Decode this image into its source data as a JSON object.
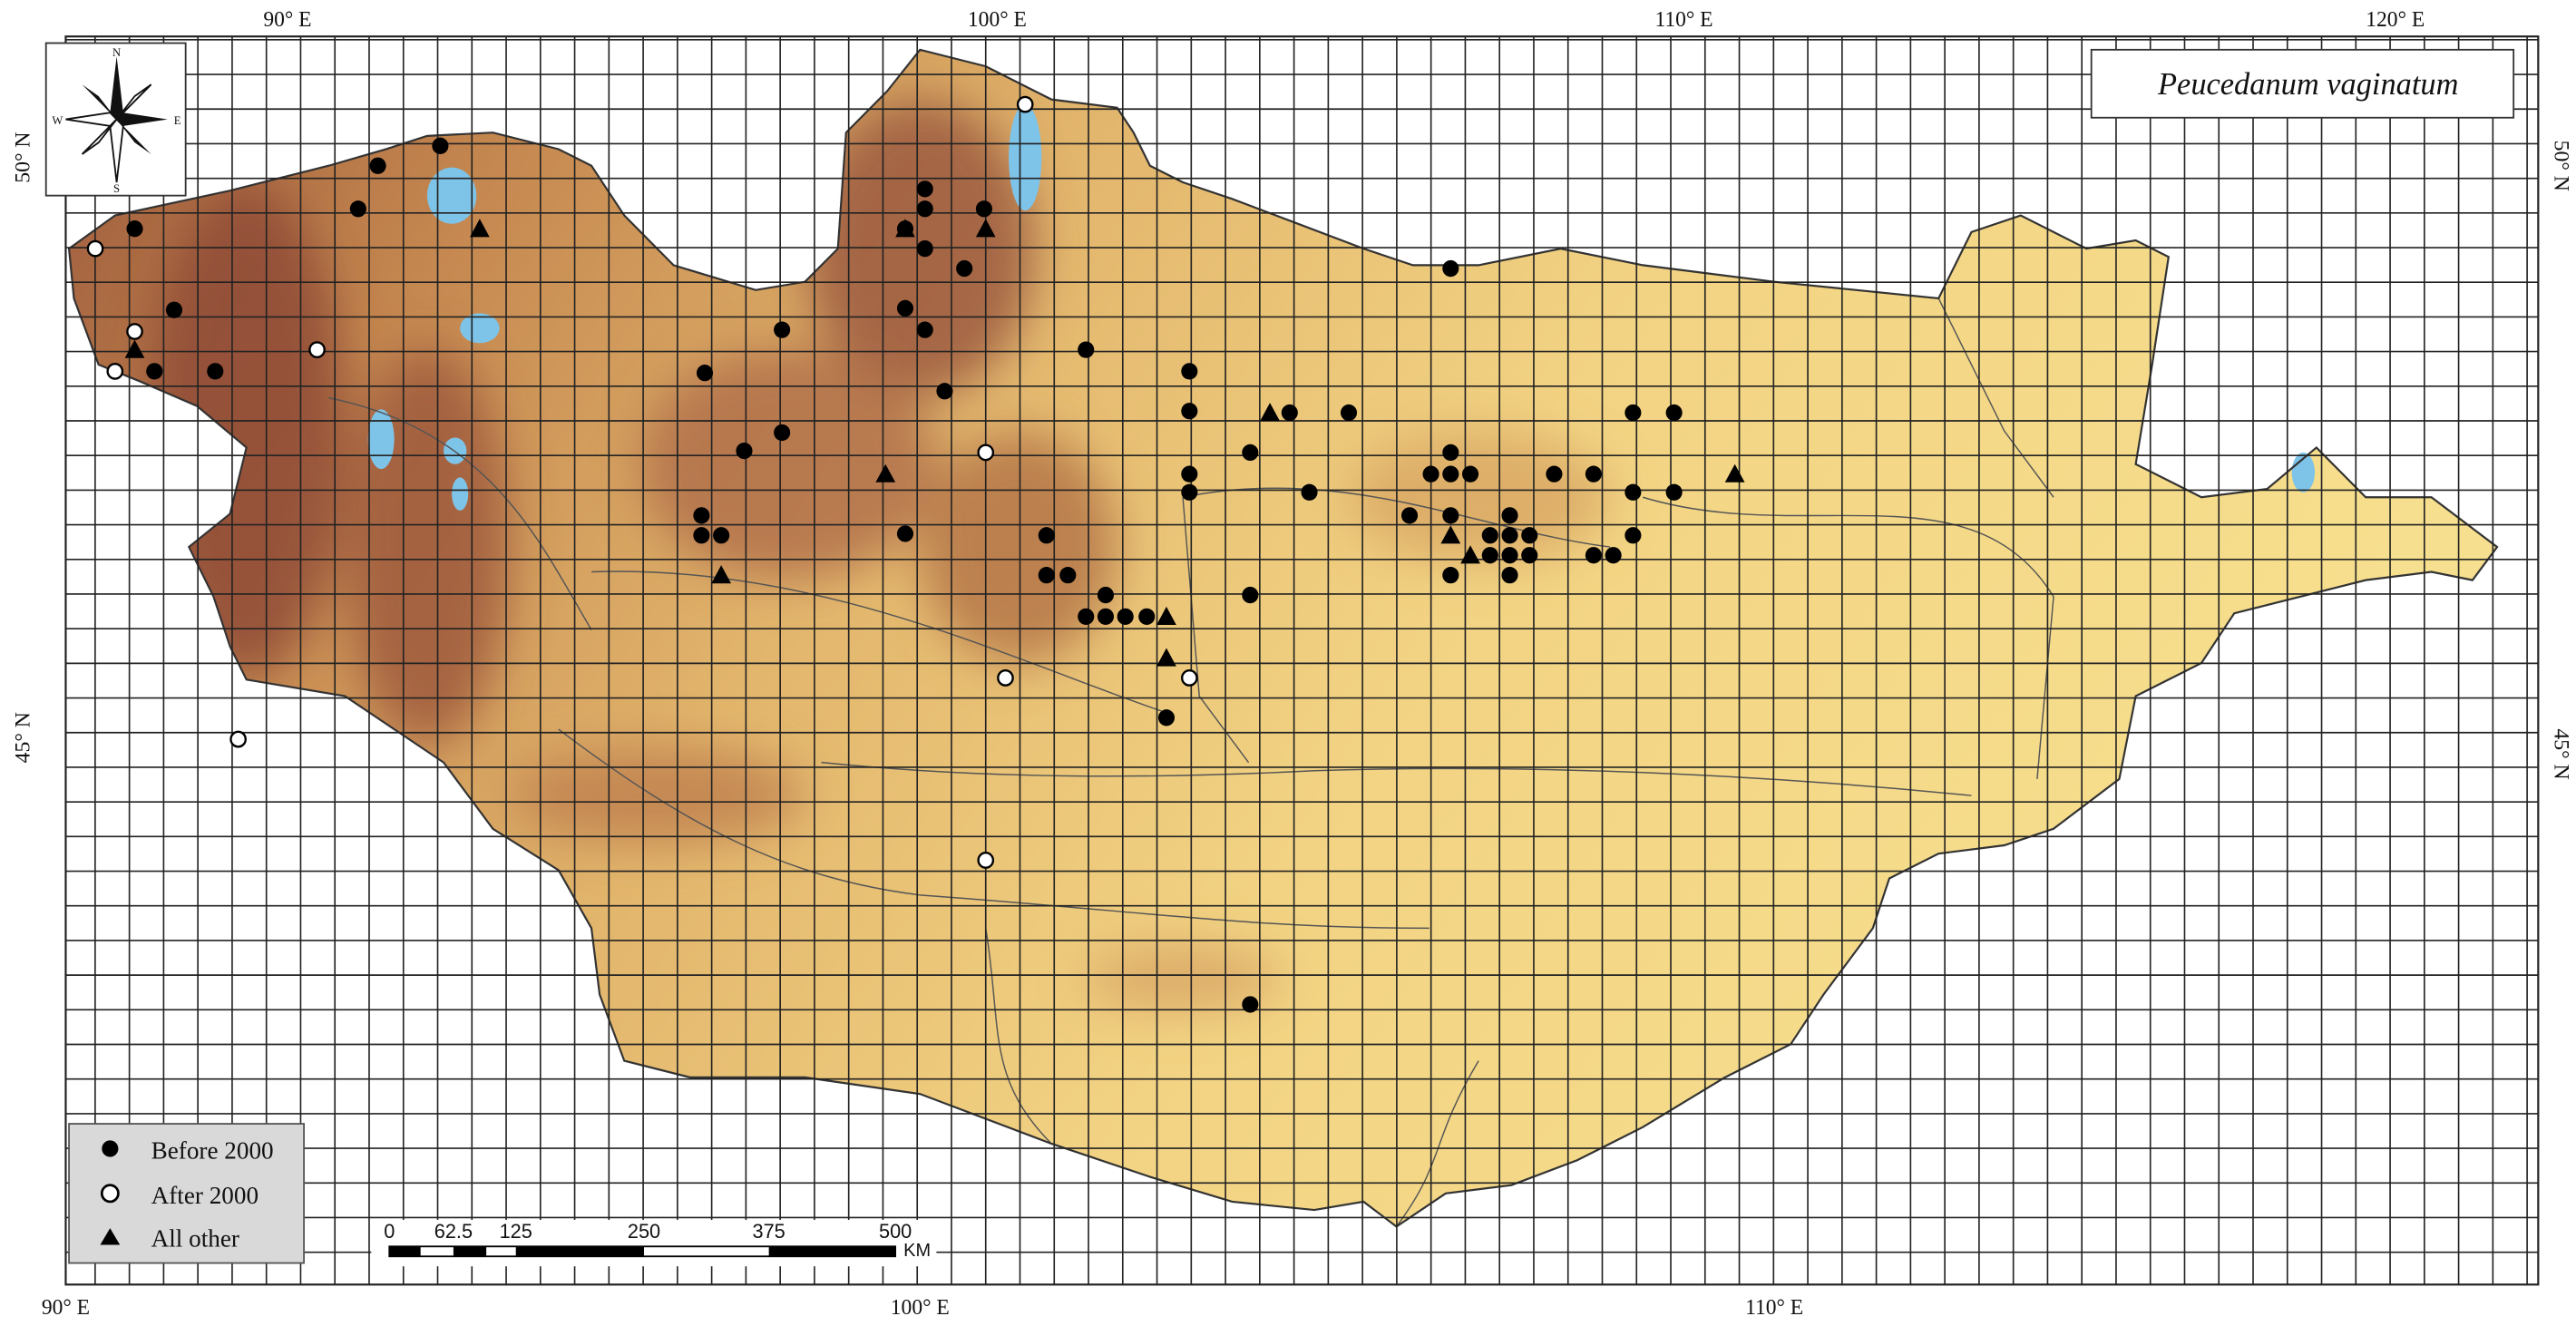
{
  "map": {
    "title": "Peucedanum vaginatum",
    "compass": {
      "north": "N",
      "south": "S",
      "east": "E",
      "west": "W"
    },
    "top_labels": [
      "90° E",
      "100° E",
      "110° E",
      "120° E"
    ],
    "bottom_labels": [
      "90° E",
      "100° E",
      "110° E"
    ],
    "left_labels": [
      "50° N",
      "45° N"
    ],
    "right_labels": [
      "50° N",
      "45° N"
    ],
    "legend": [
      "Before 2000",
      "After 2000",
      "All other"
    ],
    "scale": {
      "labels": [
        "0",
        "62.5",
        "125",
        "250",
        "375",
        "500"
      ],
      "unit": "KM"
    }
  }
}
